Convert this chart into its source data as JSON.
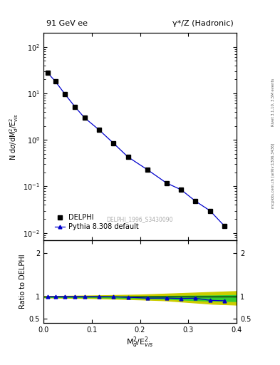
{
  "title_left": "91 GeV ee",
  "title_right": "γ*/Z (Hadronic)",
  "right_label_top": "Rivet 3.1.10, 3.5M events",
  "right_label_bottom": "mcplots.cern.ch [arXiv:1306.3436]",
  "watermark": "DELPHI_1996_S3430090",
  "ylabel_main": "N dσ/dM²_d/E²_vis",
  "ylabel_ratio": "Ratio to DELPHI",
  "xlabel": "M²_d/E²_vis",
  "ylim_main": [
    0.007,
    200
  ],
  "ylim_ratio": [
    0.4,
    2.3
  ],
  "yticks_ratio": [
    0.5,
    1.0,
    2.0
  ],
  "xticks": [
    0.0,
    0.1,
    0.2,
    0.3,
    0.4
  ],
  "delphi_x": [
    0.0083,
    0.025,
    0.045,
    0.065,
    0.085,
    0.115,
    0.145,
    0.175,
    0.215,
    0.255,
    0.285,
    0.315,
    0.345,
    0.375
  ],
  "delphi_y": [
    28.0,
    18.0,
    9.5,
    5.2,
    3.0,
    1.65,
    0.85,
    0.43,
    0.23,
    0.118,
    0.085,
    0.048,
    0.03,
    0.014
  ],
  "pythia_x": [
    0.0083,
    0.025,
    0.045,
    0.065,
    0.085,
    0.115,
    0.145,
    0.175,
    0.215,
    0.255,
    0.285,
    0.315,
    0.345,
    0.375
  ],
  "pythia_y": [
    28.0,
    18.0,
    9.5,
    5.2,
    3.0,
    1.65,
    0.85,
    0.43,
    0.23,
    0.118,
    0.085,
    0.048,
    0.03,
    0.014
  ],
  "ratio_x": [
    0.0083,
    0.025,
    0.045,
    0.065,
    0.085,
    0.115,
    0.145,
    0.175,
    0.215,
    0.255,
    0.285,
    0.315,
    0.345,
    0.375
  ],
  "ratio_y": [
    1.005,
    1.005,
    1.005,
    1.005,
    1.005,
    1.005,
    1.002,
    0.99,
    0.97,
    0.972,
    0.962,
    0.968,
    0.92,
    0.91
  ],
  "band_x": [
    0.0,
    0.1,
    0.2,
    0.25,
    0.3,
    0.35,
    0.4
  ],
  "band_green_low": [
    0.995,
    0.99,
    0.97,
    0.955,
    0.93,
    0.91,
    0.9
  ],
  "band_green_high": [
    1.005,
    1.01,
    1.015,
    1.02,
    1.025,
    1.03,
    1.04
  ],
  "band_yellow_low": [
    0.985,
    0.97,
    0.94,
    0.92,
    0.88,
    0.84,
    0.82
  ],
  "band_yellow_high": [
    1.015,
    1.03,
    1.05,
    1.07,
    1.09,
    1.11,
    1.13
  ],
  "color_delphi": "#000000",
  "color_pythia": "#0000cc",
  "color_green_band": "#33cc33",
  "color_yellow_band": "#cccc00",
  "legend_labels": [
    "DELPHI",
    "Pythia 8.308 default"
  ],
  "background_color": "#ffffff"
}
